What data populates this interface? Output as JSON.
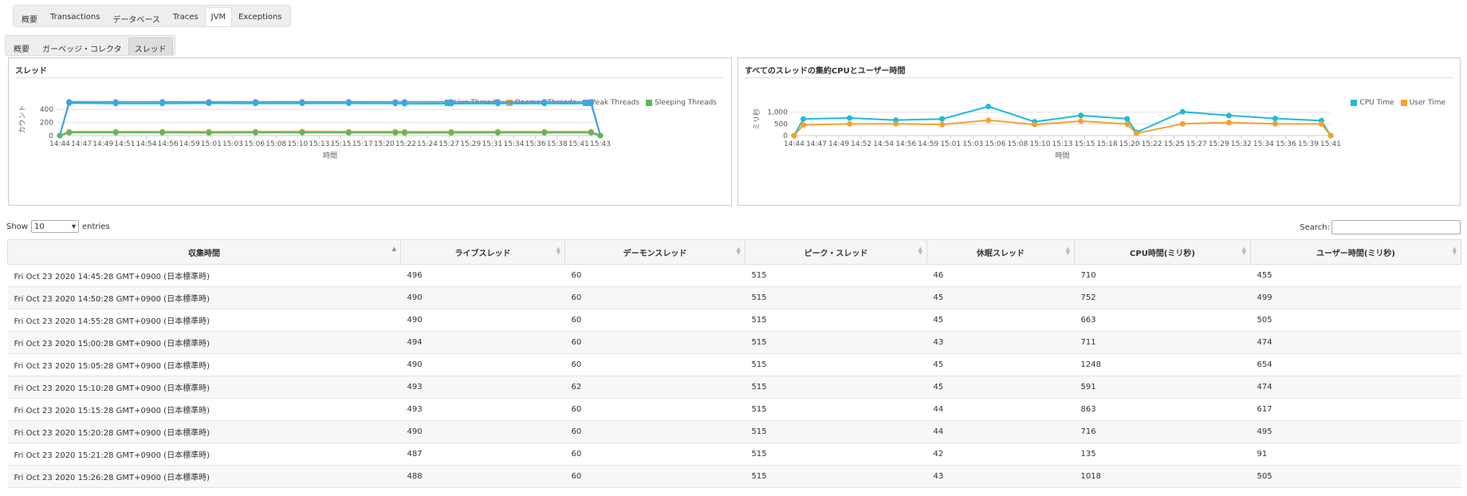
{
  "top_tabs": [
    "概要",
    "Transactions",
    "データベース",
    "Traces",
    "JVM",
    "Exceptions"
  ],
  "sub_tabs": [
    "概要",
    "ガーベッジ・コレクタ",
    "スレッド"
  ],
  "panels": {
    "threads": {
      "title": "スレッド"
    },
    "cpu": {
      "title": "すべてのスレッドの集約CPUとユーザー時間"
    }
  },
  "table_controls": {
    "show_label": "Show",
    "page_size": "10",
    "entries_label": "entries",
    "search_label": "Search:"
  },
  "table": {
    "columns": [
      "収集時間",
      "ライブスレッド",
      "デーモンスレッド",
      "ピーク・スレッド",
      "休眠スレッド",
      "CPU時間(ミリ秒)",
      "ユーザー時間(ミリ秒)"
    ],
    "rows": [
      [
        "Fri Oct 23 2020 14:45:28 GMT+0900 (日本標準時)",
        "496",
        "60",
        "515",
        "46",
        "710",
        "455"
      ],
      [
        "Fri Oct 23 2020 14:50:28 GMT+0900 (日本標準時)",
        "490",
        "60",
        "515",
        "45",
        "752",
        "499"
      ],
      [
        "Fri Oct 23 2020 14:55:28 GMT+0900 (日本標準時)",
        "490",
        "60",
        "515",
        "45",
        "663",
        "505"
      ],
      [
        "Fri Oct 23 2020 15:00:28 GMT+0900 (日本標準時)",
        "494",
        "60",
        "515",
        "43",
        "711",
        "474"
      ],
      [
        "Fri Oct 23 2020 15:05:28 GMT+0900 (日本標準時)",
        "490",
        "60",
        "515",
        "45",
        "1248",
        "654"
      ],
      [
        "Fri Oct 23 2020 15:10:28 GMT+0900 (日本標準時)",
        "493",
        "62",
        "515",
        "45",
        "591",
        "474"
      ],
      [
        "Fri Oct 23 2020 15:15:28 GMT+0900 (日本標準時)",
        "493",
        "60",
        "515",
        "44",
        "863",
        "617"
      ],
      [
        "Fri Oct 23 2020 15:20:28 GMT+0900 (日本標準時)",
        "490",
        "60",
        "515",
        "44",
        "716",
        "495"
      ],
      [
        "Fri Oct 23 2020 15:21:28 GMT+0900 (日本標準時)",
        "487",
        "60",
        "515",
        "42",
        "135",
        "91"
      ],
      [
        "Fri Oct 23 2020 15:26:28 GMT+0900 (日本標準時)",
        "488",
        "60",
        "515",
        "43",
        "1018",
        "505"
      ]
    ]
  },
  "chart_data": [
    {
      "type": "line",
      "title": "スレッド",
      "xlabel": "時間",
      "ylabel": "カウント",
      "ylim": [
        0,
        500
      ],
      "yticks": [
        0,
        200,
        400
      ],
      "x_ticks": [
        "14:44",
        "14:47",
        "14:49",
        "14:51",
        "14:54",
        "14:56",
        "14:59",
        "15:01",
        "15:03",
        "15:06",
        "15:08",
        "15:10",
        "15:13",
        "15:15",
        "15:17",
        "15:20",
        "15:22",
        "15:24",
        "15:27",
        "15:29",
        "15:31",
        "15:34",
        "15:36",
        "15:38",
        "15:41",
        "15:43"
      ],
      "x": [
        "14:44:28",
        "14:45:28",
        "14:50:28",
        "14:55:28",
        "15:00:28",
        "15:05:28",
        "15:10:28",
        "15:15:28",
        "15:20:28",
        "15:21:28",
        "15:26:28",
        "15:31:28",
        "15:36:28",
        "15:41:28",
        "15:42:28"
      ],
      "legend_position": "top-right",
      "series": [
        {
          "name": "Live Threads",
          "color": "#1bbcd6",
          "values": [
            0,
            496,
            490,
            490,
            494,
            490,
            493,
            493,
            490,
            487,
            488,
            490,
            490,
            490,
            0
          ]
        },
        {
          "name": "Daemon Threads",
          "color": "#f5a030",
          "values": [
            0,
            60,
            60,
            60,
            60,
            60,
            62,
            60,
            60,
            60,
            60,
            60,
            60,
            60,
            0
          ]
        },
        {
          "name": "Peak Threads",
          "color": "#4a9ee0",
          "values": [
            0,
            515,
            515,
            515,
            515,
            515,
            515,
            515,
            515,
            515,
            515,
            515,
            515,
            515,
            0
          ]
        },
        {
          "name": "Sleeping Threads",
          "color": "#5cb85c",
          "values": [
            0,
            46,
            45,
            45,
            43,
            45,
            45,
            44,
            44,
            42,
            43,
            44,
            44,
            44,
            0
          ]
        }
      ]
    },
    {
      "type": "line",
      "title": "すべてのスレッドの集約CPUとユーザー時間",
      "xlabel": "時間",
      "ylabel": "ミリ秒",
      "ylim": [
        0,
        1400
      ],
      "yticks": [
        0,
        500,
        1000
      ],
      "ytick_labels": [
        "0",
        "500",
        "1,000"
      ],
      "x_ticks": [
        "14:44",
        "14:47",
        "14:49",
        "14:52",
        "14:54",
        "14:56",
        "14:59",
        "15:01",
        "15:03",
        "15:06",
        "15:08",
        "15:10",
        "15:13",
        "15:15",
        "15:18",
        "15:20",
        "15:22",
        "15:25",
        "15:27",
        "15:29",
        "15:32",
        "15:34",
        "15:36",
        "15:39",
        "15:41"
      ],
      "x": [
        "14:44:28",
        "14:45:28",
        "14:50:28",
        "14:55:28",
        "15:00:28",
        "15:05:28",
        "15:10:28",
        "15:15:28",
        "15:20:28",
        "15:21:28",
        "15:26:28",
        "15:31:28",
        "15:36:28",
        "15:41:28",
        "15:42:28"
      ],
      "legend_position": "top-right",
      "series": [
        {
          "name": "CPU Time",
          "color": "#1bbcd6",
          "values": [
            0,
            710,
            752,
            663,
            711,
            1248,
            591,
            863,
            716,
            135,
            1018,
            860,
            730,
            640,
            0
          ]
        },
        {
          "name": "User Time",
          "color": "#f5a030",
          "values": [
            0,
            455,
            499,
            505,
            474,
            654,
            474,
            617,
            495,
            91,
            505,
            560,
            505,
            500,
            0
          ]
        }
      ]
    }
  ]
}
